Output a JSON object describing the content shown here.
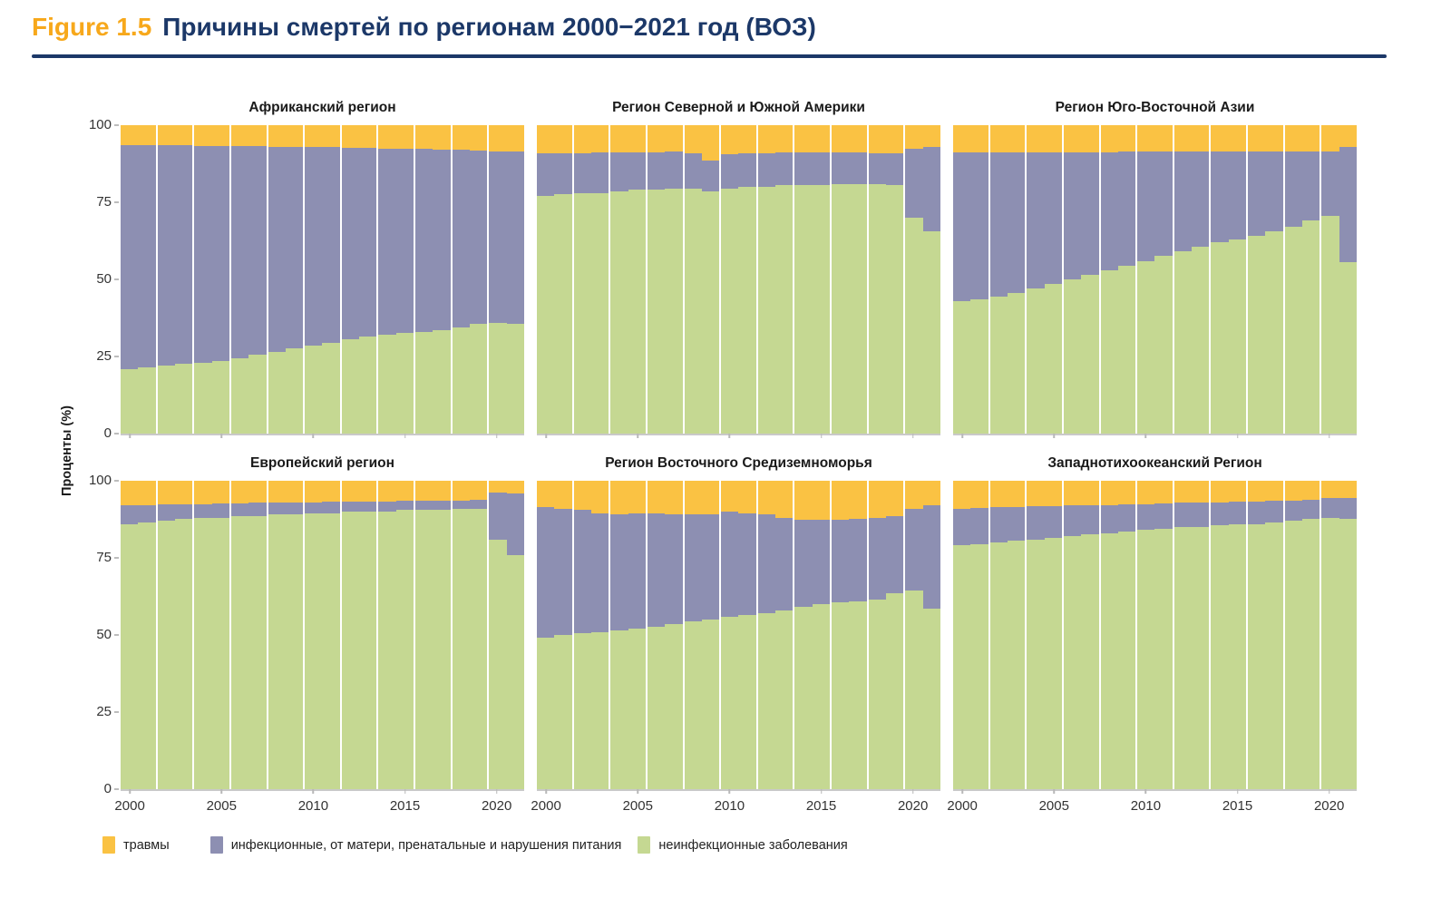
{
  "header": {
    "figure_label": "Figure 1.5",
    "title": "Причины смертей по регионам 2000−2021 год (ВОЗ)"
  },
  "colors": {
    "injuries": "#FAC243",
    "infectious": "#8D8FB2",
    "noncommunicable": "#C5D892",
    "navy": "#1C3868",
    "figure_label_color": "#F7A81B",
    "axis_line": "#c9c9c9"
  },
  "y_axis": {
    "label": "Проценты (%)",
    "ticks": [
      100,
      75,
      50,
      25,
      0
    ]
  },
  "x_axis": {
    "tick_years": [
      2000,
      2005,
      2010,
      2015,
      2020
    ]
  },
  "legend": [
    {
      "key": "injuries",
      "label": "травмы"
    },
    {
      "key": "infectious",
      "label": "инфекционные, от матери, пренатальные и нарушения питания"
    },
    {
      "key": "noncommunicable",
      "label": "неинфекционные заболевания"
    }
  ],
  "chart_data": {
    "type": "bar",
    "stacked": true,
    "unit": "%",
    "ylabel": "Проценты (%)",
    "ylim": [
      0,
      100
    ],
    "grid": false,
    "legend_position": "bottom",
    "x": [
      2000,
      2001,
      2002,
      2003,
      2004,
      2005,
      2006,
      2007,
      2008,
      2009,
      2010,
      2011,
      2012,
      2013,
      2014,
      2015,
      2016,
      2017,
      2018,
      2019,
      2020,
      2021
    ],
    "panels": [
      {
        "title": "Африканский регион",
        "series": {
          "noncommunicable": [
            21,
            21.5,
            22,
            22.5,
            23,
            23.5,
            24.5,
            25.5,
            26.5,
            27.5,
            28.5,
            29.5,
            30.5,
            31.5,
            32,
            32.5,
            33,
            33.5,
            34.5,
            35.5,
            36,
            35.5
          ],
          "infectious": [
            72.5,
            72,
            71.4,
            70.9,
            70.3,
            69.7,
            68.7,
            67.6,
            66.5,
            65.5,
            64.4,
            63.3,
            62.2,
            61.1,
            60.5,
            59.9,
            59.3,
            58.7,
            57.5,
            56.3,
            55.6,
            56
          ],
          "injuries": [
            6.5,
            6.5,
            6.6,
            6.6,
            6.7,
            6.8,
            6.8,
            6.9,
            7,
            7,
            7.1,
            7.2,
            7.3,
            7.4,
            7.5,
            7.6,
            7.7,
            7.8,
            8,
            8.2,
            8.4,
            8.5
          ]
        }
      },
      {
        "title": "Регион Северной и Южной Америки",
        "series": {
          "noncommunicable": [
            77,
            77.5,
            78,
            78,
            78.5,
            79,
            79,
            79.5,
            79.5,
            78.5,
            79.5,
            80,
            80,
            80.5,
            80.5,
            80.5,
            81,
            81,
            81,
            80.5,
            70,
            65.5
          ],
          "infectious": [
            14,
            13.5,
            13,
            13.2,
            12.7,
            12.3,
            12.3,
            11.9,
            11.5,
            10,
            11,
            11,
            11,
            10.7,
            10.7,
            10.8,
            10.3,
            10.2,
            10,
            10.5,
            22.5,
            27.5
          ],
          "injuries": [
            9,
            9,
            9,
            8.8,
            8.8,
            8.7,
            8.7,
            8.6,
            9,
            11.5,
            9.5,
            9,
            9,
            8.8,
            8.8,
            8.7,
            8.7,
            8.8,
            9,
            9,
            7.5,
            7
          ]
        }
      },
      {
        "title": "Регион Юго-Восточной Азии",
        "series": {
          "noncommunicable": [
            43,
            43.5,
            44.5,
            45.5,
            47,
            48.5,
            50,
            51.5,
            53,
            54.5,
            56,
            57.5,
            59,
            60.5,
            62,
            63,
            64,
            65.5,
            67,
            69,
            70.5,
            55.5
          ],
          "infectious": [
            48.3,
            47.8,
            46.7,
            45.7,
            44.2,
            42.8,
            41.3,
            39.8,
            38.3,
            36.9,
            35.4,
            33.9,
            32.4,
            31,
            29.5,
            28.5,
            27.5,
            26,
            24.6,
            22.6,
            21,
            37.5
          ],
          "injuries": [
            8.7,
            8.7,
            8.8,
            8.8,
            8.8,
            8.7,
            8.7,
            8.7,
            8.7,
            8.6,
            8.6,
            8.6,
            8.6,
            8.5,
            8.5,
            8.5,
            8.5,
            8.5,
            8.4,
            8.4,
            8.5,
            7
          ]
        }
      },
      {
        "title": "Европейский регион",
        "series": {
          "noncommunicable": [
            86,
            86.5,
            87,
            87.5,
            88,
            88,
            88.5,
            88.5,
            89,
            89,
            89.5,
            89.5,
            90,
            90,
            90,
            90.5,
            90.5,
            90.5,
            91,
            91,
            81,
            76
          ],
          "infectious": [
            6.1,
            5.7,
            5.3,
            4.9,
            4.5,
            4.6,
            4.2,
            4.3,
            3.9,
            4,
            3.5,
            3.6,
            3.2,
            3.2,
            3.3,
            2.9,
            2.9,
            3,
            2.6,
            2.9,
            15.3,
            20
          ],
          "injuries": [
            7.9,
            7.8,
            7.7,
            7.6,
            7.5,
            7.4,
            7.3,
            7.2,
            7.1,
            7,
            7,
            6.9,
            6.8,
            6.8,
            6.7,
            6.6,
            6.6,
            6.5,
            6.4,
            6.1,
            3.7,
            4
          ]
        }
      },
      {
        "title": "Регион Восточного Средиземноморья",
        "series": {
          "noncommunicable": [
            49,
            50,
            50.5,
            51,
            51.5,
            52,
            52.5,
            53.5,
            54.5,
            55,
            56,
            56.5,
            57,
            58,
            59,
            60,
            60.5,
            61,
            61.5,
            63.5,
            64.5,
            58.5
          ],
          "infectious": [
            42.6,
            41,
            40,
            38.5,
            37.7,
            37.5,
            37,
            35.5,
            34.5,
            34,
            34,
            33,
            32,
            30,
            28.5,
            27.5,
            27,
            26.7,
            26.5,
            25.1,
            26.5,
            33.5
          ],
          "injuries": [
            8.4,
            9,
            9.5,
            10.5,
            10.8,
            10.5,
            10.5,
            11,
            11,
            11,
            10,
            10.5,
            11,
            12,
            12.5,
            12.5,
            12.5,
            12.3,
            12,
            11.4,
            9,
            8
          ]
        }
      },
      {
        "title": "Западнотихоокеанский Регион",
        "series": {
          "noncommunicable": [
            79,
            79.5,
            80,
            80.5,
            81,
            81.5,
            82,
            82.5,
            83,
            83.5,
            84,
            84.5,
            85,
            85,
            85.5,
            86,
            86,
            86.5,
            87,
            87.5,
            88,
            87.5
          ],
          "infectious": [
            12,
            11.7,
            11.4,
            11,
            10.7,
            10.3,
            10,
            9.5,
            9.2,
            8.8,
            8.5,
            8.2,
            7.8,
            8,
            7.5,
            7.2,
            7.3,
            7,
            6.6,
            6.3,
            6.5,
            7
          ],
          "injuries": [
            9,
            8.8,
            8.6,
            8.5,
            8.3,
            8.2,
            8,
            8,
            7.8,
            7.7,
            7.5,
            7.3,
            7.2,
            7,
            7,
            6.8,
            6.7,
            6.5,
            6.4,
            6.2,
            5.5,
            5.5
          ]
        }
      }
    ]
  }
}
